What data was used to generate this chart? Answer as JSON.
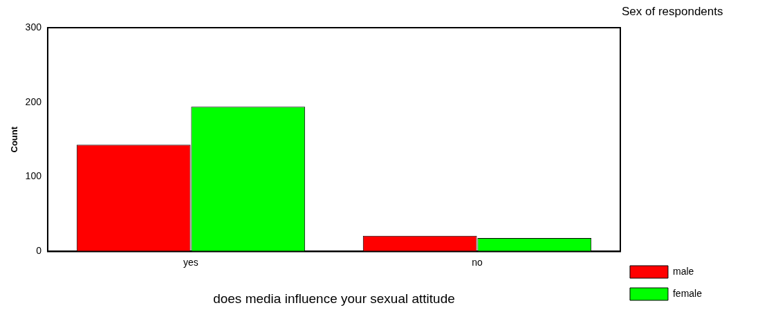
{
  "chart_data": {
    "type": "bar",
    "xlabel": "does media influence your sexual attitude",
    "ylabel": "Count",
    "legend_title": "Sex of respondents",
    "categories": [
      "yes",
      "no"
    ],
    "series": [
      {
        "name": "male",
        "color": "#ff0000",
        "values": [
          143,
          21
        ]
      },
      {
        "name": "female",
        "color": "#00ff00",
        "values": [
          194,
          18
        ]
      }
    ],
    "ylim": [
      0,
      300
    ],
    "yticks": [
      0,
      100,
      200,
      300
    ],
    "grid": false,
    "legend": "right"
  }
}
